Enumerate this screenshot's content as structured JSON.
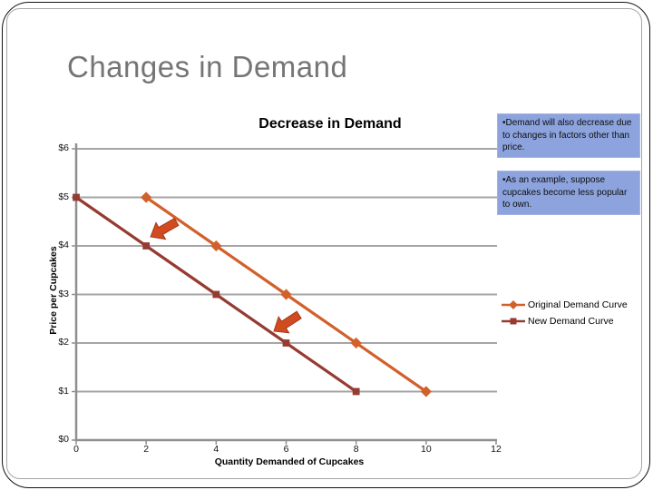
{
  "slide": {
    "title": "Changes in Demand"
  },
  "chart_data": {
    "type": "line",
    "title": "Decrease in Demand",
    "xlabel": "Quantity Demanded of Cupcakes",
    "ylabel": "Price per Cupcakes",
    "x_ticks": [
      "0",
      "2",
      "4",
      "6",
      "8",
      "10",
      "12"
    ],
    "y_ticks": [
      "$0",
      "$1",
      "$2",
      "$3",
      "$4",
      "$5",
      "$6"
    ],
    "xlim": [
      0,
      12
    ],
    "ylim": [
      0,
      6
    ],
    "grid": true,
    "smoothed": true,
    "legend_position": "right",
    "series": [
      {
        "name": "Original Demand Curve",
        "color": "#D2602B",
        "marker": "diamond",
        "points": [
          [
            2,
            5
          ],
          [
            4,
            4
          ],
          [
            6,
            3
          ],
          [
            8,
            2
          ],
          [
            10,
            1
          ]
        ]
      },
      {
        "name": "New Demand Curve",
        "color": "#963B31",
        "marker": "square",
        "points": [
          [
            0,
            5
          ],
          [
            2,
            4
          ],
          [
            4,
            3
          ],
          [
            6,
            2
          ],
          [
            8,
            1
          ]
        ]
      }
    ],
    "annotations": [
      {
        "type": "shift-arrow",
        "meaning": "demand curve shifts left"
      },
      {
        "type": "shift-arrow",
        "meaning": "demand curve shifts left"
      }
    ]
  },
  "callouts": [
    {
      "text": "•Demand will also decrease due to changes in factors other than price."
    },
    {
      "text": "•As an example, suppose cupcakes become less popular to own."
    }
  ],
  "colors": {
    "slide_title": "#757575",
    "callout_bg": "#8CA3DD",
    "gridline": "#A5A5A5",
    "axis": "#8F8F8F",
    "arrow": "#D14B20",
    "arrow_outline": "#A33A17"
  }
}
